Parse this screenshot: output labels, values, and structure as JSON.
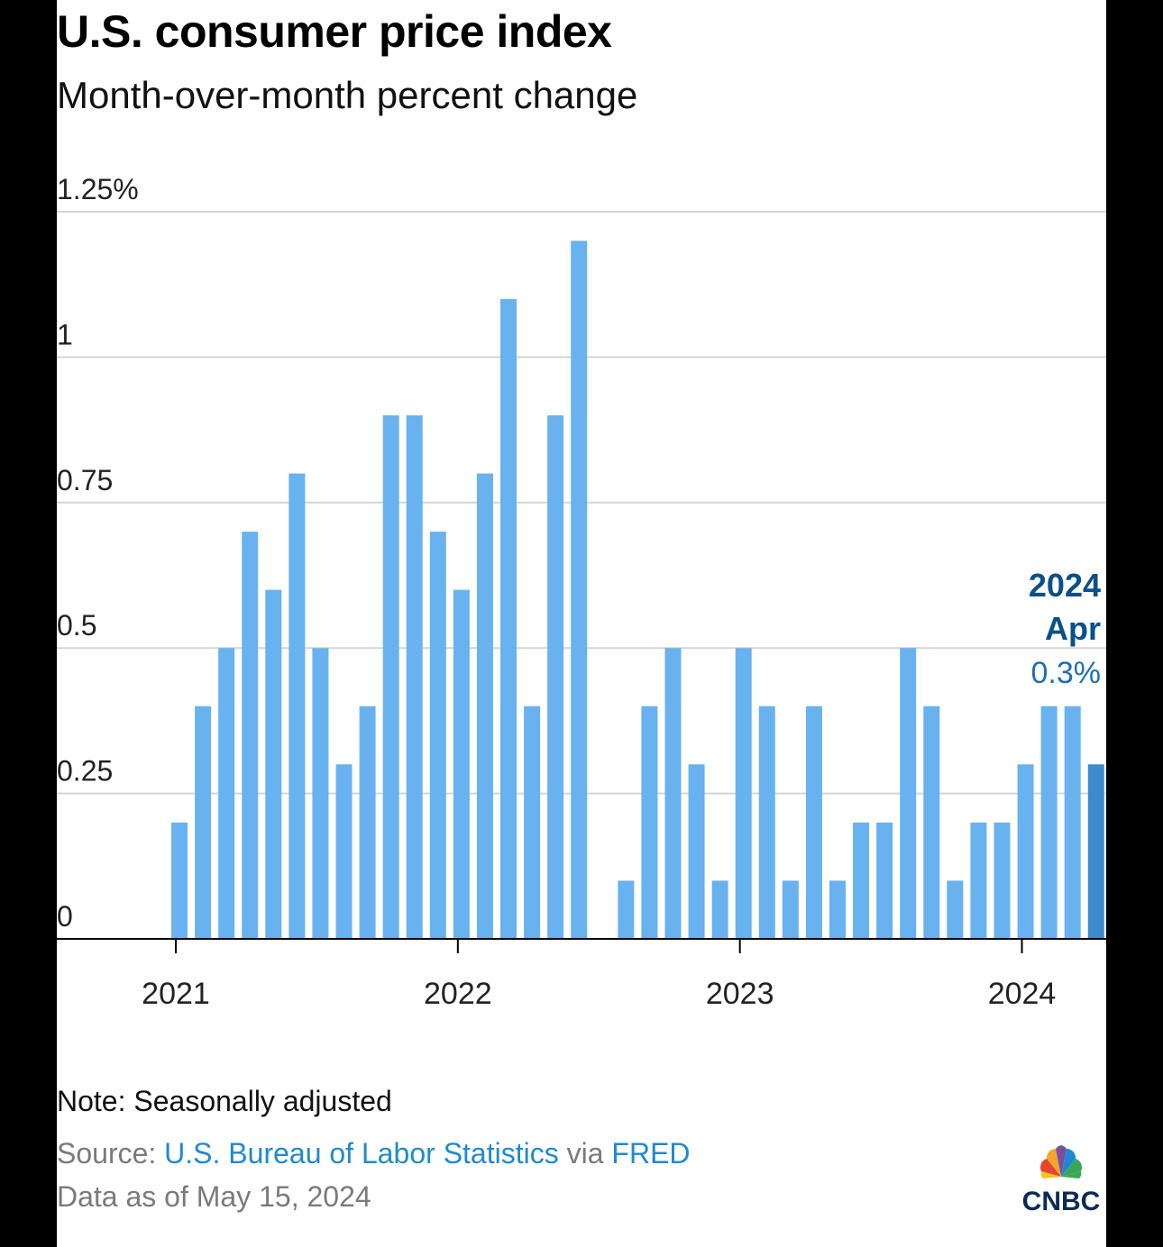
{
  "header": {
    "title": "U.S. consumer price index",
    "subtitle": "Month-over-month percent change"
  },
  "chart_data": {
    "type": "bar",
    "title": "U.S. consumer price index",
    "subtitle": "Month-over-month percent change",
    "xlabel": "",
    "ylabel": "",
    "ylim": [
      0,
      1.25
    ],
    "y_ticks": [
      0,
      0.25,
      0.5,
      0.75,
      1,
      1.25
    ],
    "y_tick_labels": [
      "0",
      "0.25",
      "0.5",
      "0.75",
      "1",
      "1.25%"
    ],
    "x_tick_labels": [
      "2021",
      "2022",
      "2023",
      "2024"
    ],
    "x_tick_months": [
      "2021-01",
      "2022-01",
      "2023-01",
      "2024-01"
    ],
    "grid": true,
    "categories": [
      "2021-01",
      "2021-02",
      "2021-03",
      "2021-04",
      "2021-05",
      "2021-06",
      "2021-07",
      "2021-08",
      "2021-09",
      "2021-10",
      "2021-11",
      "2021-12",
      "2022-01",
      "2022-02",
      "2022-03",
      "2022-04",
      "2022-05",
      "2022-06",
      "2022-07",
      "2022-08",
      "2022-09",
      "2022-10",
      "2022-11",
      "2022-12",
      "2023-01",
      "2023-02",
      "2023-03",
      "2023-04",
      "2023-05",
      "2023-06",
      "2023-07",
      "2023-08",
      "2023-09",
      "2023-10",
      "2023-11",
      "2023-12",
      "2024-01",
      "2024-02",
      "2024-03",
      "2024-04"
    ],
    "values": [
      0.2,
      0.4,
      0.5,
      0.7,
      0.6,
      0.8,
      0.5,
      0.3,
      0.4,
      0.9,
      0.9,
      0.7,
      0.6,
      0.8,
      1.1,
      0.4,
      0.9,
      1.2,
      0.0,
      0.1,
      0.4,
      0.5,
      0.3,
      0.1,
      0.5,
      0.4,
      0.1,
      0.4,
      0.1,
      0.2,
      0.2,
      0.5,
      0.4,
      0.1,
      0.2,
      0.2,
      0.3,
      0.4,
      0.4,
      0.3
    ],
    "highlight": {
      "month": "2024-04",
      "year_label": "2024",
      "month_label": "Apr",
      "value_label": "0.3%"
    },
    "colors": {
      "bar": "#68b2ef",
      "highlight_bar": "#3d8bcf",
      "highlight_text": "#0b4f8a",
      "grid": "#d6d6d6",
      "axis": "#000000"
    }
  },
  "footer": {
    "note": "Note: Seasonally adjusted",
    "source_prefix": "Source: ",
    "source_link": "U.S. Bureau of Labor Statistics",
    "source_via": " via ",
    "source_link2": "FRED",
    "as_of": "Data as of May 15, 2024"
  },
  "logo": {
    "text": "CNBC",
    "icon": "nbc-peacock-icon"
  }
}
